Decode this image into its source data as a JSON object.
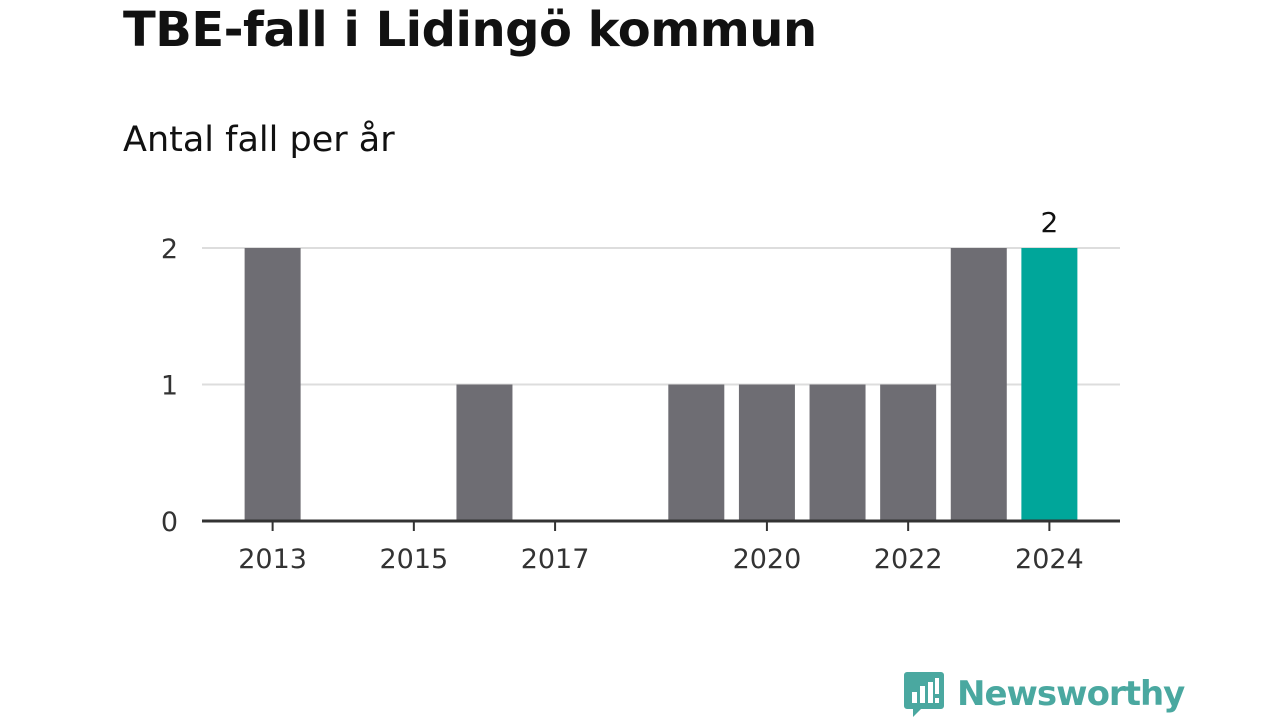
{
  "title": "TBE-fall i Lidingö kommun",
  "subtitle": "Antal fall per år",
  "brand": {
    "name": "Newsworthy",
    "icon": "newsworthy-logo-icon",
    "color": "#4aa8a0"
  },
  "colors": {
    "bar": "#6e6d73",
    "highlight": "#00a69a",
    "grid": "#dddddd",
    "axis": "#333333"
  },
  "chart_data": {
    "type": "bar",
    "categories": [
      "2013",
      "2014",
      "2015",
      "2016",
      "2017",
      "2018",
      "2019",
      "2020",
      "2021",
      "2022",
      "2023",
      "2024"
    ],
    "values": [
      2,
      0,
      0,
      1,
      0,
      0,
      1,
      1,
      1,
      1,
      2,
      2
    ],
    "highlight_category": "2024",
    "x_tick_labels": [
      "2013",
      "2015",
      "2017",
      "2020",
      "2022",
      "2024"
    ],
    "y_ticks": [
      0,
      1,
      2
    ],
    "ylim": [
      0,
      2
    ],
    "grid": true,
    "data_labels": [
      {
        "category": "2024",
        "text": "2"
      }
    ],
    "xlabel": "",
    "ylabel": ""
  }
}
